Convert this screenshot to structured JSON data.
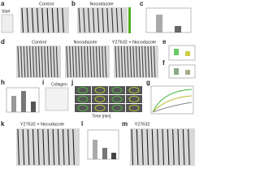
{
  "panels": [
    {
      "letter": "a",
      "title": "Control",
      "inset": "Start"
    },
    {
      "letter": "b",
      "title": "Nocodazole"
    },
    {
      "letter": "c"
    },
    {
      "letter": "d",
      "titles": [
        "Control",
        "Nocodazole",
        "Y27632 + Nocodazole"
      ]
    },
    {
      "letter": "e"
    },
    {
      "letter": "f"
    },
    {
      "letter": "g"
    },
    {
      "letter": "h"
    },
    {
      "letter": "i",
      "inset": "Collagen"
    },
    {
      "letter": "j"
    },
    {
      "letter": "k",
      "title": "Y27632 + Nocodazole"
    },
    {
      "letter": "l"
    },
    {
      "letter": "m",
      "title": "Y27632"
    }
  ],
  "axis_label": "Time [min]"
}
